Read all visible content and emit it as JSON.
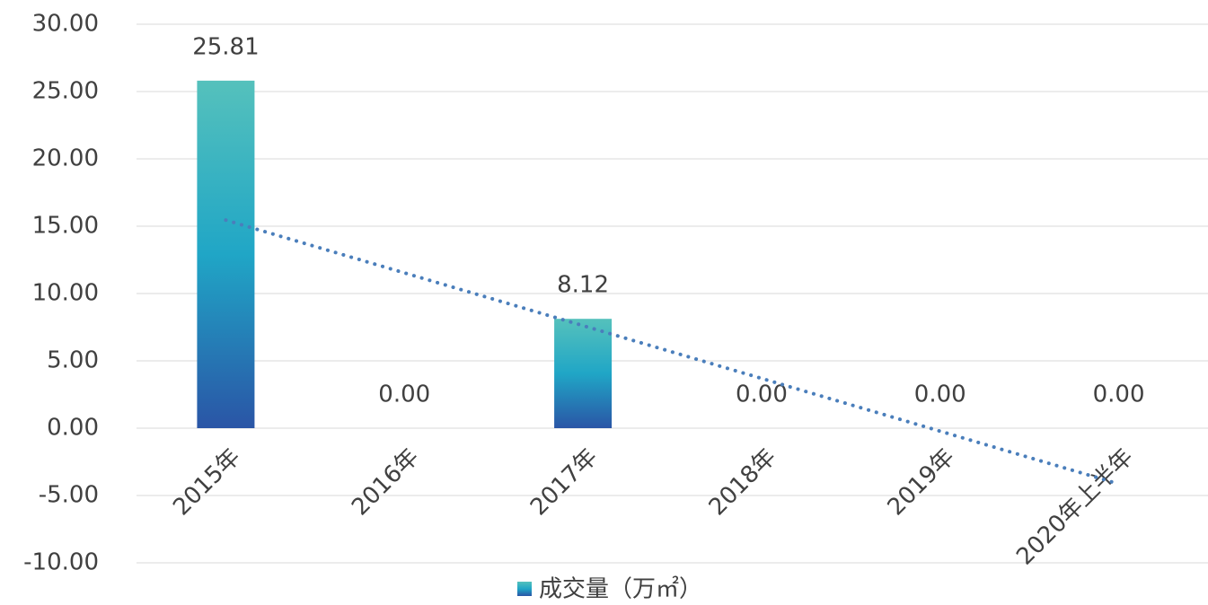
{
  "chart_data": {
    "type": "bar",
    "categories": [
      "2015年",
      "2016年",
      "2017年",
      "2018年",
      "2019年",
      "2020年上半年"
    ],
    "series": [
      {
        "name": "成交量（万㎡）",
        "gradient": [
          "#55c1bc",
          "#20a6c6",
          "#2a55a6"
        ],
        "values": [
          25.81,
          0,
          8.12,
          0,
          0,
          0
        ],
        "value_labels": [
          "25.81",
          "0.00",
          "8.12",
          "0.00",
          "0.00",
          "0.00"
        ]
      }
    ],
    "ylim": [
      -10,
      30
    ],
    "yticks": [
      {
        "value": -10,
        "label": "-10.00"
      },
      {
        "value": -5,
        "label": "-5.00"
      },
      {
        "value": 0,
        "label": "0.00"
      },
      {
        "value": 5,
        "label": "5.00"
      },
      {
        "value": 10,
        "label": "10.00"
      },
      {
        "value": 15,
        "label": "15.00"
      },
      {
        "value": 20,
        "label": "20.00"
      },
      {
        "value": 25,
        "label": "25.00"
      },
      {
        "value": 30,
        "label": "30.00"
      }
    ],
    "grid": true,
    "trendline": {
      "type": "linear",
      "color": "#4a7ebb"
    },
    "legend": "bottom"
  }
}
